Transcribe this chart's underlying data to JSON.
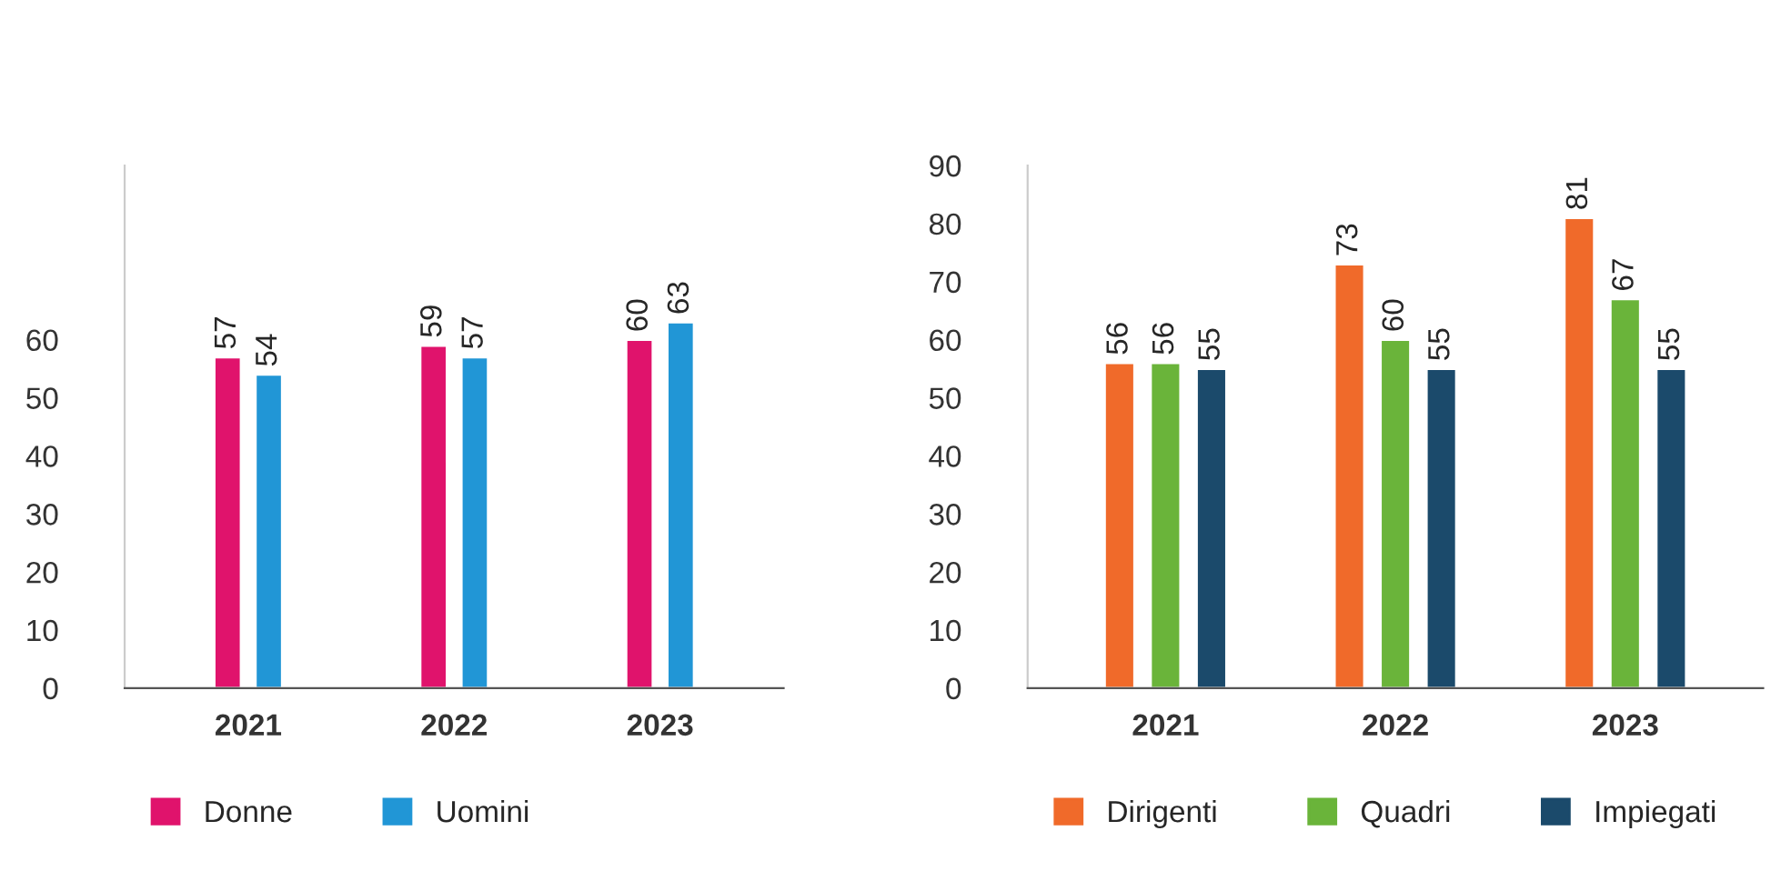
{
  "chart_data": [
    {
      "type": "bar",
      "categories": [
        "2021",
        "2022",
        "2023"
      ],
      "series": [
        {
          "name": "Donne",
          "color": "#e0136c",
          "values": [
            57,
            59,
            60
          ]
        },
        {
          "name": "Uomini",
          "color": "#2196d6",
          "values": [
            54,
            57,
            63
          ]
        }
      ],
      "ylim": [
        0,
        90
      ],
      "yticks": [
        0,
        10,
        20,
        30,
        40,
        50,
        60
      ],
      "data_labels": true,
      "legend": "bottom",
      "grid": false
    },
    {
      "type": "bar",
      "categories": [
        "2021",
        "2022",
        "2023"
      ],
      "series": [
        {
          "name": "Dirigenti",
          "color": "#f06a2a",
          "values": [
            56,
            73,
            81
          ]
        },
        {
          "name": "Quadri",
          "color": "#6ab43a",
          "values": [
            56,
            60,
            67
          ]
        },
        {
          "name": "Impiegati",
          "color": "#1b4a6b",
          "values": [
            55,
            55,
            55
          ]
        }
      ],
      "ylim": [
        0,
        90
      ],
      "yticks": [
        0,
        10,
        20,
        30,
        40,
        50,
        60,
        70,
        80,
        90
      ],
      "data_labels": true,
      "legend": "bottom",
      "grid": false
    }
  ]
}
